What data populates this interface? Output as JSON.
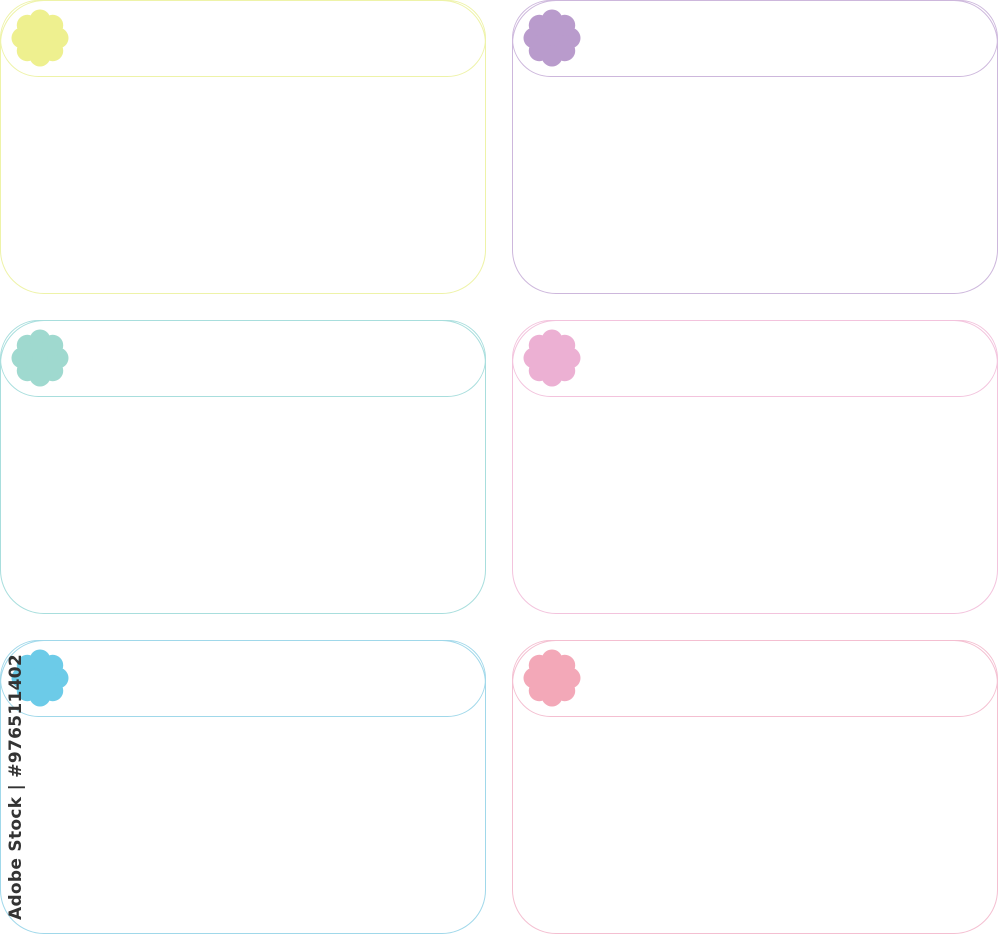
{
  "cards": [
    {
      "flower_color": "#eef08f",
      "border_color": "#eef3a8"
    },
    {
      "flower_color": "#b99bcc",
      "border_color": "#cdb7dc"
    },
    {
      "flower_color": "#9fd9cf",
      "border_color": "#a8dedd"
    },
    {
      "flower_color": "#ecb0d3",
      "border_color": "#f3c3dd"
    },
    {
      "flower_color": "#6ccbe8",
      "border_color": "#a0d8ea"
    },
    {
      "flower_color": "#f3a8b8",
      "border_color": "#f4bfd1"
    }
  ],
  "watermark": "Adobe Stock | #976511402"
}
